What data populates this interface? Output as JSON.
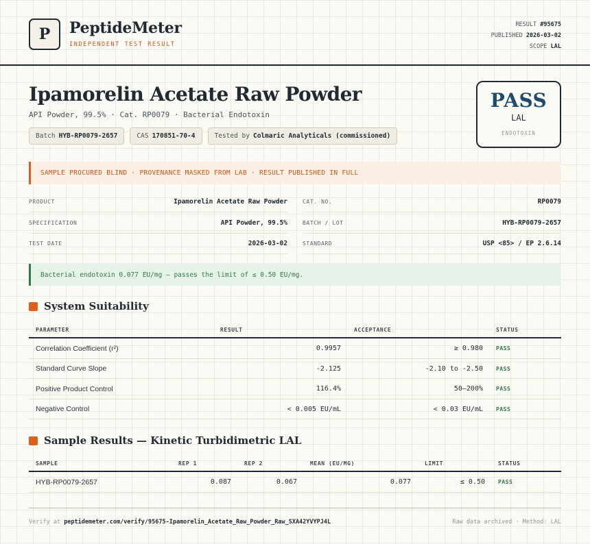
{
  "header": {
    "logo_letter": "P",
    "brand": "PeptideMeter",
    "tagline": "INDEPENDENT TEST RESULT",
    "result_label": "RESULT",
    "result_value": "#95675",
    "published_label": "PUBLISHED",
    "published_value": "2026-03-02",
    "scope_label": "SCOPE",
    "scope_value": "LAL"
  },
  "product": {
    "title": "Ipamorelin Acetate Raw Powder",
    "subtitle": "API Powder, 99.5% · Cat. RP0079 · Bacterial Endotoxin",
    "chips": {
      "batch_label": "Batch",
      "batch_value": "HYB-RP0079-2657",
      "cas_label": "CAS",
      "cas_value": "170851-70-4",
      "tested_label": "Tested by",
      "tested_value": "Colmaric Analyticals (commissioned)"
    }
  },
  "stamp": {
    "result": "PASS",
    "method": "LAL",
    "kind": "ENDOTOXIN"
  },
  "notice": "SAMPLE PROCURED BLIND · PROVENANCE MASKED FROM LAB · RESULT PUBLISHED IN FULL",
  "info": {
    "product_label": "PRODUCT",
    "product_value": "Ipamorelin Acetate Raw Powder",
    "cat_label": "CAT. NO.",
    "cat_value": "RP0079",
    "spec_label": "SPECIFICATION",
    "spec_value": "API Powder, 99.5%",
    "batch_label": "BATCH / LOT",
    "batch_value": "HYB-RP0079-2657",
    "date_label": "TEST DATE",
    "date_value": "2026-03-02",
    "standard_label": "STANDARD",
    "standard_value": "USP <85> / EP 2.6.14"
  },
  "verdict": "Bacterial endotoxin 0.077 EU/mg — passes the limit of ≤ 0.50 EU/mg.",
  "suitability": {
    "title": "System Suitability",
    "headers": {
      "parameter": "PARAMETER",
      "result": "RESULT",
      "acceptance": "ACCEPTANCE",
      "status": "STATUS"
    },
    "rows": [
      {
        "parameter": "Correlation Coefficient (r²)",
        "result": "0.9957",
        "acceptance": "≥ 0.980",
        "status": "PASS"
      },
      {
        "parameter": "Standard Curve Slope",
        "result": "-2.125",
        "acceptance": "-2.10 to -2.50",
        "status": "PASS"
      },
      {
        "parameter": "Positive Product Control",
        "result": "116.4%",
        "acceptance": "50–200%",
        "status": "PASS"
      },
      {
        "parameter": "Negative Control",
        "result": "< 0.005 EU/mL",
        "acceptance": "< 0.03 EU/mL",
        "status": "PASS"
      }
    ]
  },
  "samples": {
    "title": "Sample Results — Kinetic Turbidimetric LAL",
    "headers": {
      "sample": "SAMPLE",
      "rep1": "REP 1",
      "rep2": "REP 2",
      "mean": "MEAN (EU/MG)",
      "limit": "LIMIT",
      "status": "STATUS"
    },
    "rows": [
      {
        "sample": "HYB-RP0079-2657",
        "rep1": "0.087",
        "rep2": "0.067",
        "mean": "0.077",
        "limit": "≤ 0.50",
        "status": "PASS"
      }
    ]
  },
  "footer": {
    "verify_prefix": "Verify at",
    "verify_url": "peptidemeter.com/verify/95675-Ipamorelin_Acetate_Raw_Powder_Raw_SXA42YVYPJ4L",
    "right": "Raw data archived · Method: LAL"
  }
}
